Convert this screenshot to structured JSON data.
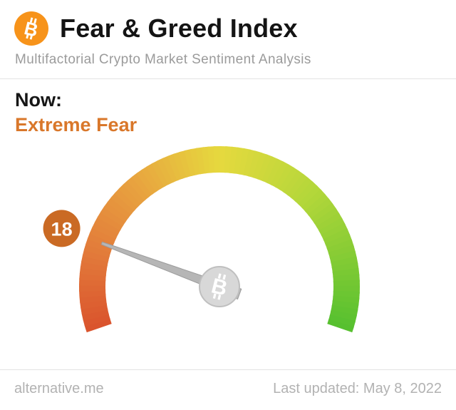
{
  "header": {
    "title": "Fear & Greed Index",
    "subtitle": "Multifactorial Crypto Market Sentiment Analysis",
    "logo_color": "#f7931a",
    "logo_icon": "bitcoin-icon"
  },
  "now": {
    "label": "Now:",
    "value": "Extreme Fear",
    "value_color": "#d9772a"
  },
  "footer": {
    "site": "alternative.me",
    "last_updated": "Last updated: May 8, 2022"
  },
  "chart_data": {
    "type": "gauge",
    "title": "Fear & Greed Index",
    "value": 18,
    "min": 0,
    "max": 100,
    "classification": "Extreme Fear",
    "start_angle_deg": 199,
    "end_angle_deg": -19,
    "needle_color": "#b6b6b6",
    "badge_color": "#ca6a24",
    "center_coin_icon": "bitcoin-icon",
    "gradient_stops": [
      {
        "pos": 0.0,
        "color": "#da532c"
      },
      {
        "pos": 0.15,
        "color": "#e2793a"
      },
      {
        "pos": 0.32,
        "color": "#e8a33f"
      },
      {
        "pos": 0.5,
        "color": "#e6d93e"
      },
      {
        "pos": 0.7,
        "color": "#b5d73a"
      },
      {
        "pos": 1.0,
        "color": "#55c02f"
      }
    ]
  }
}
